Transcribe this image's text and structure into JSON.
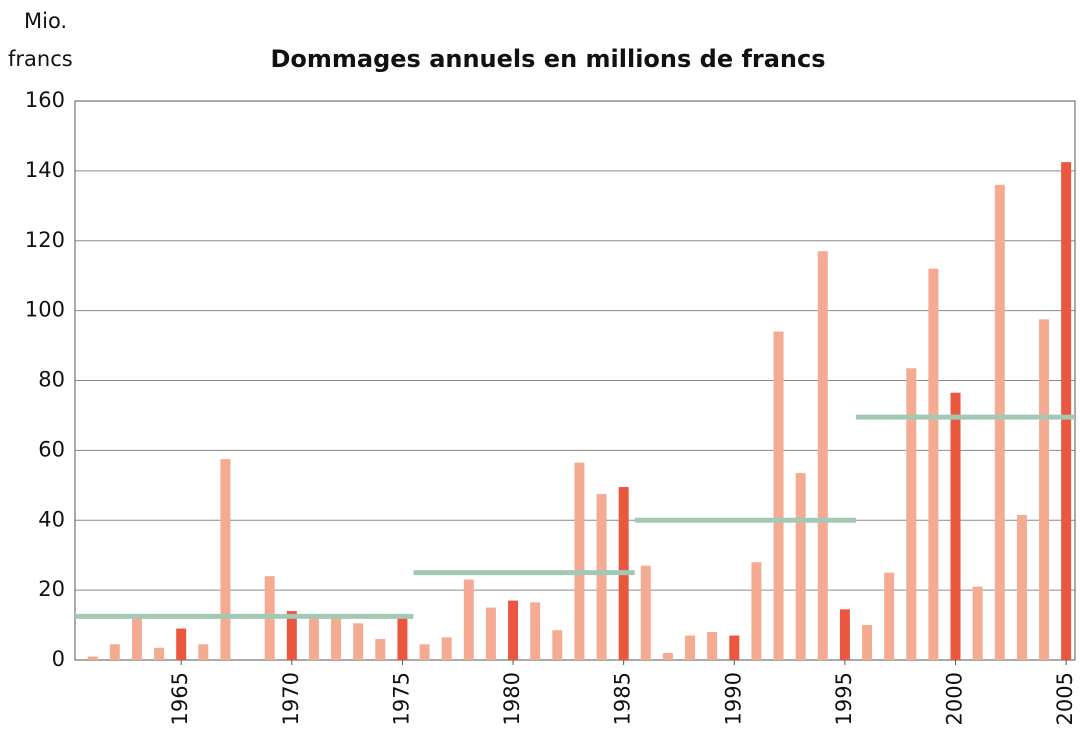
{
  "chart_data": {
    "type": "bar",
    "title": "Dommages annuels en millions de francs",
    "y_label": [
      "Mio.",
      "francs"
    ],
    "x": [
      1961,
      1962,
      1963,
      1964,
      1965,
      1966,
      1967,
      1968,
      1969,
      1970,
      1971,
      1972,
      1973,
      1974,
      1975,
      1976,
      1977,
      1978,
      1979,
      1980,
      1981,
      1982,
      1983,
      1984,
      1985,
      1986,
      1987,
      1988,
      1989,
      1990,
      1991,
      1992,
      1993,
      1994,
      1995,
      1996,
      1997,
      1998,
      1999,
      2000,
      2001,
      2002,
      2003,
      2004,
      2005
    ],
    "values": [
      1,
      4.5,
      12,
      3.5,
      9,
      4.5,
      57.5,
      0,
      24,
      14,
      13,
      13,
      10.5,
      6,
      12,
      4.5,
      6.5,
      23,
      15,
      17,
      16.5,
      8.5,
      56.5,
      47.5,
      49.5,
      27,
      2,
      7,
      8,
      7,
      28,
      94,
      53.5,
      117,
      14.5,
      10,
      25,
      83.5,
      112,
      76.5,
      21,
      136,
      41.5,
      97.5,
      142.5
    ],
    "color": "#f4ab92",
    "highlight_color": "#e9573f",
    "xlim": [
      1960.2,
      2005.4
    ],
    "xticks": [
      1965,
      1970,
      1975,
      1980,
      1985,
      1990,
      1995,
      2000,
      2005
    ],
    "ylim": [
      0,
      160
    ],
    "yticks": [
      0,
      20,
      40,
      60,
      80,
      100,
      120,
      140,
      160
    ],
    "grid": true,
    "averages": {
      "color": "#a3c9b4",
      "series": [
        {
          "x": [
            1960.2,
            1975.5
          ],
          "value": 12.5
        },
        {
          "x": [
            1975.5,
            1985.5
          ],
          "value": 25
        },
        {
          "x": [
            1985.5,
            1995.5
          ],
          "value": 40
        },
        {
          "x": [
            1995.5,
            2005.4
          ],
          "value": 69.5
        }
      ]
    }
  }
}
